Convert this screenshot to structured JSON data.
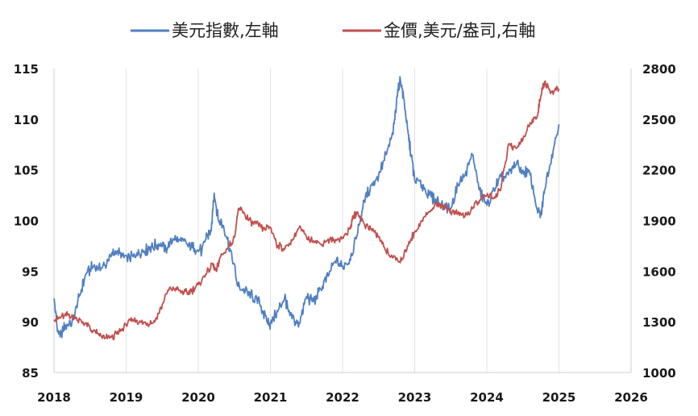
{
  "chart_data": {
    "type": "line",
    "title": "",
    "legend": {
      "placement": "top-center",
      "entries": [
        {
          "label": "美元指數,左軸",
          "color": "#4f7fc1"
        },
        {
          "label": "金價,美元/盎司,右軸",
          "color": "#c0504d"
        }
      ]
    },
    "x_ticks": [
      "2018",
      "2019",
      "2020",
      "2021",
      "2022",
      "2023",
      "2024",
      "2025",
      "2026"
    ],
    "xlim": [
      2018,
      2026
    ],
    "y_left": {
      "ticks": [
        "85",
        "90",
        "95",
        "100",
        "105",
        "110",
        "115"
      ],
      "lim": [
        85,
        115
      ]
    },
    "y_right": {
      "ticks": [
        "1000",
        "1300",
        "1600",
        "1900",
        "2200",
        "2500",
        "2800"
      ],
      "lim": [
        1000,
        2800
      ]
    },
    "grid": {
      "vertical": true,
      "horizontal": false
    },
    "series": [
      {
        "name": "美元指數,左軸",
        "axis": "left",
        "color": "#4f7fc1",
        "x": [
          2018.0,
          2018.05,
          2018.1,
          2018.15,
          2018.25,
          2018.35,
          2018.45,
          2018.55,
          2018.65,
          2018.75,
          2018.85,
          2018.95,
          2019.05,
          2019.15,
          2019.25,
          2019.35,
          2019.45,
          2019.55,
          2019.65,
          2019.75,
          2019.85,
          2019.95,
          2020.05,
          2020.12,
          2020.18,
          2020.22,
          2020.28,
          2020.35,
          2020.45,
          2020.55,
          2020.65,
          2020.75,
          2020.85,
          2020.95,
          2021.0,
          2021.1,
          2021.2,
          2021.25,
          2021.35,
          2021.4,
          2021.5,
          2021.6,
          2021.7,
          2021.8,
          2021.9,
          2022.0,
          2022.1,
          2022.2,
          2022.3,
          2022.4,
          2022.5,
          2022.6,
          2022.7,
          2022.75,
          2022.8,
          2022.85,
          2022.9,
          2022.95,
          2023.0,
          2023.1,
          2023.2,
          2023.3,
          2023.4,
          2023.5,
          2023.6,
          2023.7,
          2023.8,
          2023.9,
          2024.0,
          2024.1,
          2024.2,
          2024.3,
          2024.4,
          2024.5,
          2024.6,
          2024.7,
          2024.75,
          2024.8,
          2024.9,
          2025.0
        ],
        "values": [
          92.3,
          89.0,
          88.7,
          89.5,
          90.0,
          92.5,
          94.8,
          95.5,
          95.2,
          96.0,
          97.0,
          96.5,
          96.2,
          96.8,
          97.0,
          97.4,
          97.7,
          97.2,
          98.2,
          98.0,
          97.6,
          97.2,
          97.0,
          98.5,
          99.0,
          102.7,
          100.0,
          99.5,
          97.0,
          93.5,
          93.0,
          92.5,
          91.8,
          90.0,
          89.8,
          91.0,
          92.5,
          91.0,
          90.0,
          89.8,
          92.5,
          92.0,
          93.2,
          94.5,
          96.0,
          95.5,
          96.2,
          98.5,
          102.0,
          103.5,
          104.5,
          106.5,
          108.5,
          112.0,
          114.0,
          112.0,
          109.0,
          106.5,
          104.0,
          103.5,
          102.5,
          102.0,
          101.5,
          101.2,
          103.5,
          104.5,
          106.5,
          103.0,
          101.5,
          103.0,
          104.3,
          104.5,
          105.5,
          105.0,
          104.5,
          101.0,
          100.5,
          103.0,
          106.5,
          109.5
        ]
      },
      {
        "name": "金價,美元/盎司,右軸",
        "axis": "right",
        "color": "#c0504d",
        "x": [
          2018.0,
          2018.1,
          2018.2,
          2018.3,
          2018.4,
          2018.5,
          2018.6,
          2018.7,
          2018.8,
          2018.9,
          2019.0,
          2019.1,
          2019.2,
          2019.3,
          2019.4,
          2019.5,
          2019.6,
          2019.7,
          2019.8,
          2019.9,
          2020.0,
          2020.1,
          2020.2,
          2020.25,
          2020.3,
          2020.4,
          2020.5,
          2020.55,
          2020.6,
          2020.7,
          2020.8,
          2020.9,
          2021.0,
          2021.1,
          2021.2,
          2021.3,
          2021.4,
          2021.5,
          2021.6,
          2021.7,
          2021.8,
          2021.9,
          2022.0,
          2022.1,
          2022.15,
          2022.2,
          2022.3,
          2022.4,
          2022.5,
          2022.6,
          2022.7,
          2022.8,
          2022.9,
          2023.0,
          2023.1,
          2023.2,
          2023.3,
          2023.4,
          2023.5,
          2023.6,
          2023.7,
          2023.8,
          2023.9,
          2024.0,
          2024.1,
          2024.2,
          2024.3,
          2024.4,
          2024.5,
          2024.6,
          2024.7,
          2024.75,
          2024.8,
          2024.9,
          2025.0
        ],
        "values": [
          1310,
          1330,
          1340,
          1320,
          1300,
          1260,
          1230,
          1200,
          1210,
          1240,
          1280,
          1310,
          1300,
          1290,
          1300,
          1400,
          1500,
          1490,
          1470,
          1480,
          1520,
          1580,
          1640,
          1600,
          1680,
          1730,
          1800,
          1950,
          1970,
          1900,
          1880,
          1850,
          1860,
          1750,
          1730,
          1780,
          1860,
          1800,
          1780,
          1760,
          1790,
          1780,
          1800,
          1850,
          1920,
          1950,
          1880,
          1850,
          1800,
          1720,
          1680,
          1650,
          1750,
          1830,
          1900,
          1950,
          2000,
          1990,
          1950,
          1940,
          1930,
          1970,
          2020,
          2050,
          2030,
          2100,
          2350,
          2330,
          2380,
          2480,
          2520,
          2640,
          2720,
          2660,
          2680
        ]
      }
    ]
  }
}
